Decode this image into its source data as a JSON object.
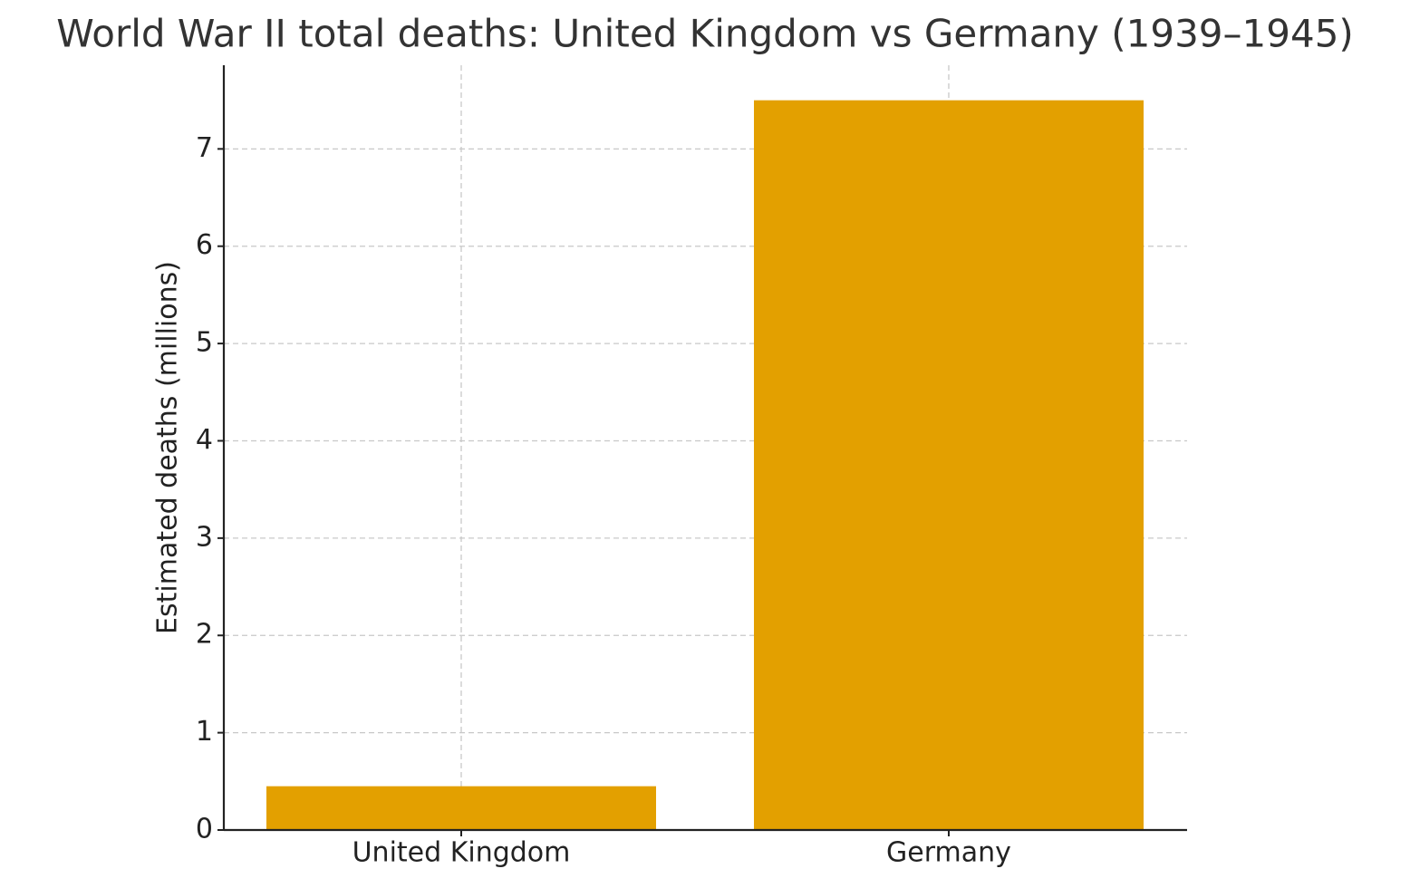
{
  "chart_data": {
    "type": "bar",
    "title": "World War II total deaths: United Kingdom vs Germany (1939–1945)",
    "y_label": "Estimated deaths (millions)",
    "categories": [
      "United Kingdom",
      "Germany"
    ],
    "values": [
      0.45,
      7.5
    ],
    "color": "#e3a000",
    "ylim": [
      0,
      7.86
    ],
    "yticks": [
      0,
      1,
      2,
      3,
      4,
      5,
      6,
      7
    ],
    "grid": true
  }
}
